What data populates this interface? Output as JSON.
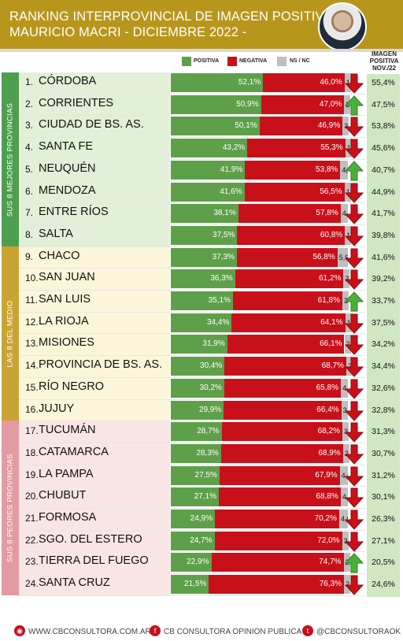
{
  "header": {
    "title_line1": "RANKING INTERPROVINCIAL DE IMAGEN POSITIVA",
    "title_line2": "MAURICIO MACRI  - DICIEMBRE 2022 -"
  },
  "legend": {
    "positive": "POSITIVA",
    "negative": "NEGATIVA",
    "nsnc": "NS / NC"
  },
  "image_header": [
    "IMAGEN",
    "POSITIVA",
    "NOV./22"
  ],
  "sections": {
    "top": "SUS 8 MEJORES PROVINCIAS",
    "middle": "LAS 8 DEL MEDIO",
    "bottom": "SUS 8 PEORES PROVINCIAS"
  },
  "colors": {
    "gold": "#b8961c",
    "green": "#5ea04a",
    "red": "#c8101a",
    "gray": "#bfbfbf",
    "top_band": "#e1f0d6",
    "middle_band": "#fbf6d9",
    "bottom_band": "#fae5e5"
  },
  "chart_data": {
    "type": "bar",
    "stacked": true,
    "categories": [
      "CÓRDOBA",
      "CORRIENTES",
      "CIUDAD DE BS. AS.",
      "SANTA FE",
      "NEUQUÉN",
      "MENDOZA",
      "ENTRE RÍOS",
      "SALTA",
      "CHACO",
      "SAN JUAN",
      "SAN LUIS",
      "LA RIOJA",
      "MISIONES",
      "PROVINCIA DE BS. AS.",
      "RÍO NEGRO",
      "JUJUY",
      "TUCUMÁN",
      "CATAMARCA",
      "LA PAMPA",
      "CHUBUT",
      "FORMOSA",
      "SGO. DEL ESTERO",
      "TIERRA DEL FUEGO",
      "SANTA CRUZ"
    ],
    "ranks": [
      "1.",
      "2.",
      "3.",
      "4.",
      "5.",
      "6.",
      "7.",
      "8.",
      "9.",
      "10.",
      "11.",
      "12.",
      "13.",
      "14.",
      "15.",
      "16.",
      "17.",
      "18.",
      "19.",
      "20.",
      "21.",
      "22.",
      "23.",
      "24."
    ],
    "series": [
      {
        "name": "POSITIVA",
        "values": [
          52.1,
          50.9,
          50.1,
          43.2,
          41.9,
          41.6,
          38.1,
          37.5,
          37.3,
          36.3,
          35.1,
          34.4,
          31.9,
          30.4,
          30.2,
          29.9,
          28.7,
          28.3,
          27.5,
          27.1,
          24.9,
          24.7,
          22.9,
          21.5
        ]
      },
      {
        "name": "NEGATIVA",
        "values": [
          46.0,
          47.0,
          46.9,
          55.3,
          53.8,
          56.5,
          57.8,
          60.8,
          56.8,
          61.2,
          61.8,
          64.1,
          66.1,
          68.7,
          65.8,
          66.4,
          68.2,
          68.9,
          67.9,
          68.8,
          70.2,
          72.0,
          74.7,
          76.3
        ]
      },
      {
        "name": "NS / NC",
        "values": [
          1.9,
          2.1,
          3.0,
          1.5,
          4.3,
          1.9,
          4.1,
          1.7,
          5.9,
          2.5,
          3.1,
          1.5,
          2.0,
          2.9,
          4.0,
          3.7,
          3.1,
          2.8,
          4.6,
          4.1,
          4.9,
          3.3,
          2.4,
          2.2
        ]
      }
    ],
    "labels": {
      "positive": [
        "52,1%",
        "50,9%",
        "50,1%",
        "43,2%",
        "41,9%",
        "41,6%",
        "38,1%",
        "37,5%",
        "37,3%",
        "36,3%",
        "35,1%",
        "34,4%",
        "31,9%",
        "30,4%",
        "30,2%",
        "29,9%",
        "28,7%",
        "28,3%",
        "27,5%",
        "27,1%",
        "24,9%",
        "24,7%",
        "22,9%",
        "21,5%"
      ],
      "negative": [
        "46,0%",
        "47,0%",
        "46,9%",
        "55,3%",
        "53,8%",
        "56,5%",
        "57,8%",
        "60,8%",
        "56,8%",
        "61,2%",
        "61,8%",
        "64,1%",
        "66,1%",
        "68,7%",
        "65,8%",
        "66,4%",
        "68,2%",
        "68,9%",
        "67,9%",
        "68,8%",
        "70,2%",
        "72,0%",
        "74,7%",
        "76,3%"
      ],
      "nsnc": [
        "1,9",
        "2,1",
        "3,0",
        "1,5",
        "4,3",
        "1,9",
        "4,1",
        "1,7",
        "5,9",
        "2,5",
        "3,1",
        "1,5",
        "2,0",
        "2,9",
        "4,0",
        "3,7",
        "3,1",
        "2,8",
        "4,6",
        "4,1",
        "4,9",
        "3,3",
        "2,4",
        "2,2"
      ],
      "prev": [
        "55,4%",
        "47,5%",
        "53,8%",
        "45,6%",
        "40,7%",
        "44,9%",
        "41,7%",
        "39,8%",
        "41,6%",
        "39,2%",
        "33,7%",
        "37,5%",
        "34,2%",
        "34,4%",
        "32,6%",
        "32,8%",
        "31,3%",
        "30,7%",
        "31,2%",
        "30,1%",
        "26,3%",
        "27,1%",
        "20,5%",
        "24,6%"
      ]
    },
    "trend": [
      "down",
      "up",
      "down",
      "down",
      "up",
      "down",
      "down",
      "down",
      "down",
      "down",
      "up",
      "down",
      "down",
      "down",
      "down",
      "down",
      "down",
      "down",
      "down",
      "down",
      "down",
      "down",
      "up",
      "down"
    ],
    "xlim": [
      0,
      100
    ]
  },
  "footer": {
    "site": "WWW.CBCONSULTORA.COM.AR",
    "brand": "CB CONSULTORA OPINION PUBLICA",
    "social": "@CBCONSULTORAOK"
  }
}
